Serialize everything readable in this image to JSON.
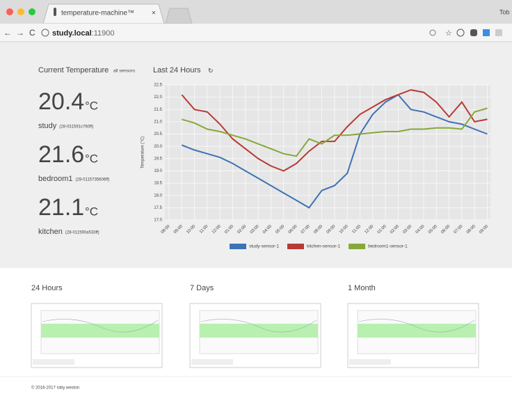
{
  "browser": {
    "tab_title": "temperature-machine™",
    "user": "Tob",
    "url_host": "study.local",
    "url_port": ":11900"
  },
  "current": {
    "title": "Current Temperature",
    "link": "all sensors",
    "readings": [
      {
        "value": 20.4,
        "unit": "°C",
        "name": "study",
        "id": "(28-031591c760ff)"
      },
      {
        "value": 21.6,
        "unit": "°C",
        "name": "bedroom1",
        "id": "(28-0115735606ff)"
      },
      {
        "value": 21.1,
        "unit": "°C",
        "name": "kitchen",
        "id": "(28-011590a533ff)"
      }
    ]
  },
  "chart_data": {
    "type": "line",
    "title": "Last 24 Hours",
    "y_label": "Temperature (°C)",
    "categories": [
      "08:00",
      "09:00",
      "10:00",
      "11:00",
      "12:00",
      "01:00",
      "02:00",
      "03:00",
      "04:00",
      "05:00",
      "06:00",
      "07:00",
      "08:00",
      "09:00",
      "10:00",
      "11:00",
      "12:00",
      "01:00",
      "02:00",
      "03:00",
      "04:00",
      "05:00",
      "06:00",
      "07:00",
      "08:00",
      "09:00"
    ],
    "series": [
      {
        "name": "study-sensor-1",
        "color": "#3d72b4",
        "values": [
          null,
          20.05,
          19.85,
          19.7,
          19.55,
          19.3,
          19.0,
          18.7,
          18.4,
          18.1,
          17.8,
          17.5,
          18.2,
          18.4,
          18.9,
          20.5,
          21.3,
          21.8,
          22.1,
          21.5,
          21.4,
          21.2,
          21.0,
          20.9,
          20.7,
          20.5
        ]
      },
      {
        "name": "kitchen-sensor-1",
        "color": "#b83a34",
        "values": [
          null,
          22.1,
          21.5,
          21.4,
          20.9,
          20.3,
          19.9,
          19.5,
          19.2,
          19.0,
          19.3,
          19.8,
          20.2,
          20.2,
          20.8,
          21.3,
          21.6,
          21.9,
          22.1,
          22.3,
          22.2,
          21.8,
          21.2,
          21.8,
          21.0,
          21.1
        ]
      },
      {
        "name": "bedroom1-sensor-1",
        "color": "#86a83a",
        "values": [
          null,
          21.1,
          20.95,
          20.7,
          20.6,
          20.45,
          20.3,
          20.1,
          19.9,
          19.7,
          19.6,
          20.3,
          20.1,
          20.45,
          20.45,
          20.5,
          20.55,
          20.6,
          20.6,
          20.7,
          20.7,
          20.75,
          20.75,
          20.7,
          21.4,
          21.55
        ]
      }
    ],
    "ylim": [
      17,
      22.5
    ],
    "yticks": [
      {
        "value": 17,
        "label": "17.0"
      },
      17.5,
      {
        "value": 18,
        "label": "18.0"
      },
      18.5,
      {
        "value": 19,
        "label": "19.0"
      },
      19.5,
      {
        "value": 20,
        "label": "20.0"
      },
      20.5,
      {
        "value": 21,
        "label": "21.0"
      },
      21.5,
      {
        "value": 22,
        "label": "22.0"
      },
      22.5
    ],
    "grid": true
  },
  "thumbnails": [
    {
      "title": "24 Hours"
    },
    {
      "title": "7 Days"
    },
    {
      "title": "1 Month"
    }
  ],
  "footer": {
    "copyright": "© 2016-2017",
    "author": "toby weston"
  }
}
